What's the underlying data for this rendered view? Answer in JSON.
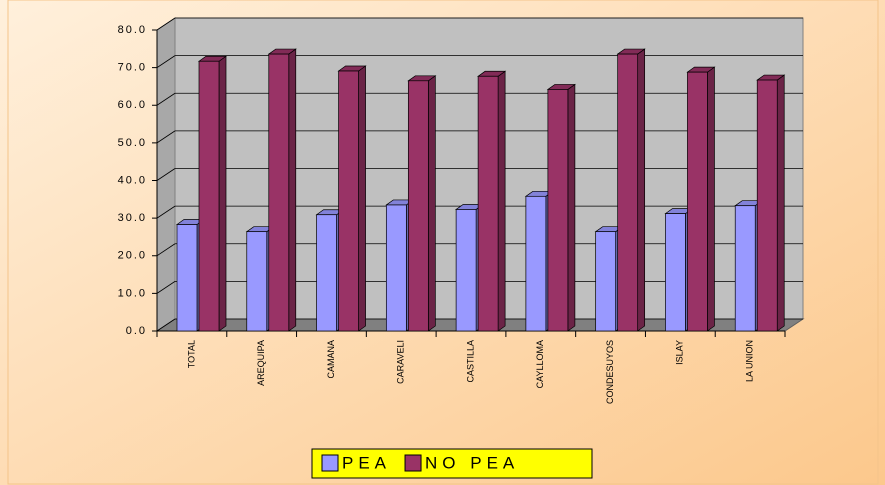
{
  "chart_data": {
    "type": "bar3d",
    "categories": [
      "TOTAL",
      "AREQUIPA",
      "CAMANA",
      "CARAVELI",
      "CASTILLA",
      "CAYLLOMA",
      "CONDESUYOS",
      "ISLAY",
      "LA UNION"
    ],
    "series": [
      {
        "name": "PEA",
        "color": "#9999ff",
        "values": [
          28.3,
          26.4,
          30.9,
          33.5,
          32.3,
          35.8,
          26.4,
          31.2,
          33.3
        ]
      },
      {
        "name": "NO PEA",
        "color": "#993366",
        "values": [
          71.7,
          73.6,
          69.1,
          66.5,
          67.7,
          64.2,
          73.6,
          68.8,
          66.7
        ]
      }
    ],
    "ylim": [
      0,
      80
    ],
    "yticks": [
      {
        "value": 0,
        "label": "0.0"
      },
      {
        "value": 10,
        "label": "10.0"
      },
      {
        "value": 20,
        "label": "20.0"
      },
      {
        "value": 30,
        "label": "30.0"
      },
      {
        "value": 40,
        "label": "40.0"
      },
      {
        "value": 50,
        "label": "50.0"
      },
      {
        "value": 60,
        "label": "60.0"
      },
      {
        "value": 70,
        "label": "70.0"
      },
      {
        "value": 80,
        "label": "80.0"
      }
    ],
    "grid": true,
    "legend": "bottom"
  }
}
